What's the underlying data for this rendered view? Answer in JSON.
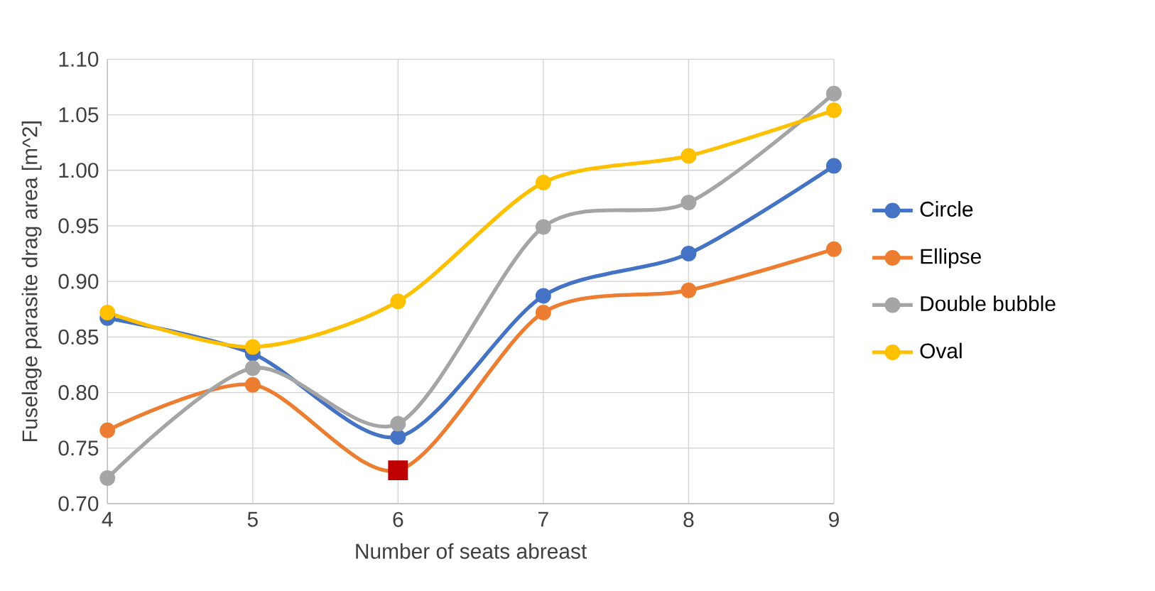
{
  "chart_data": {
    "type": "line",
    "xlabel": "Number of seats abreast",
    "ylabel": "Fuselage parasite drag area [m^2]",
    "x": [
      4,
      5,
      6,
      7,
      8,
      9
    ],
    "series": [
      {
        "name": "Circle",
        "color": "#4472c4",
        "values": [
          0.867,
          0.835,
          0.76,
          0.887,
          0.925,
          1.004
        ]
      },
      {
        "name": "Ellipse",
        "color": "#ed7d31",
        "values": [
          0.766,
          0.807,
          0.73,
          0.872,
          0.892,
          0.929
        ]
      },
      {
        "name": "Double bubble",
        "color": "#a5a5a5",
        "values": [
          0.723,
          0.822,
          0.772,
          0.949,
          0.971,
          1.069
        ]
      },
      {
        "name": "Oval",
        "color": "#ffc000",
        "values": [
          0.872,
          0.841,
          0.882,
          0.989,
          1.013,
          1.054
        ]
      },
      {
        "type": "scatter",
        "color": "#c00000",
        "marker": "square",
        "x": [
          6
        ],
        "values": [
          0.73
        ]
      }
    ],
    "xlim": [
      4,
      9
    ],
    "xticks": [
      4,
      5,
      6,
      7,
      8,
      9
    ],
    "ylim": [
      0.7,
      1.1
    ],
    "yticks": [
      {
        "value": 0.7,
        "label": "0.70"
      },
      {
        "value": 0.75,
        "label": "0.75"
      },
      {
        "value": 0.8,
        "label": "0.80"
      },
      {
        "value": 0.85,
        "label": "0.85"
      },
      {
        "value": 0.9,
        "label": "0.90"
      },
      {
        "value": 0.95,
        "label": "0.95"
      },
      {
        "value": 1.0,
        "label": "1.00"
      },
      {
        "value": 1.05,
        "label": "1.05"
      },
      {
        "value": 1.1,
        "label": "1.10"
      }
    ],
    "grid": true,
    "legend": "right",
    "marker": "circle"
  }
}
